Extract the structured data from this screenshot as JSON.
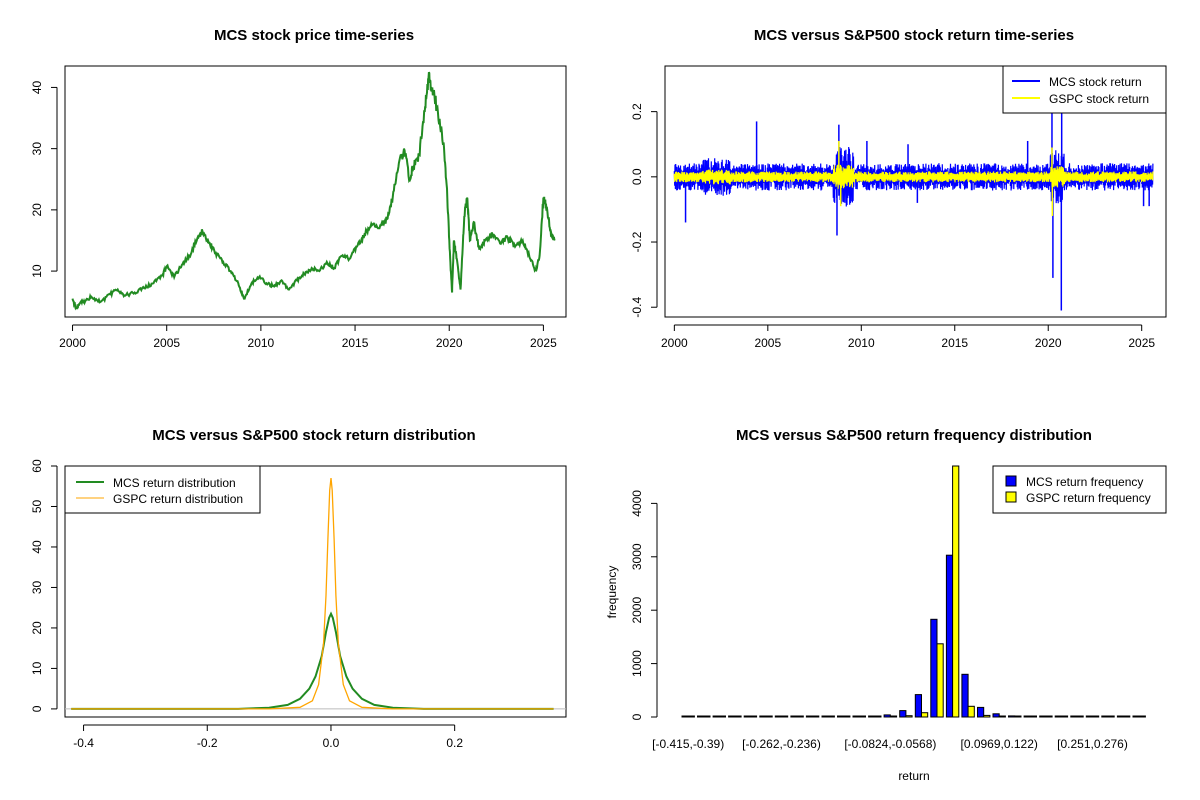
{
  "chart_data": [
    {
      "type": "line",
      "title": "MCS stock price time-series",
      "xlabel": "",
      "ylabel": "",
      "xlim": [
        1999.6,
        2026.2
      ],
      "ylim": [
        2.5,
        43.5
      ],
      "x_ticks": [
        2000,
        2005,
        2010,
        2015,
        2020,
        2025
      ],
      "y_ticks": [
        10,
        20,
        30,
        40
      ],
      "grid": false,
      "colors": {
        "line": "#228B22"
      },
      "series": [
        {
          "name": "MCS price",
          "x": [
            2000.0,
            2000.2,
            2000.4,
            2000.7,
            2001.0,
            2001.5,
            2002.0,
            2002.4,
            2002.8,
            2003.3,
            2003.8,
            2004.3,
            2004.8,
            2005.0,
            2005.4,
            2005.8,
            2006.2,
            2006.6,
            2006.9,
            2007.2,
            2007.6,
            2008.0,
            2008.4,
            2008.8,
            2009.1,
            2009.5,
            2009.9,
            2010.3,
            2010.7,
            2011.1,
            2011.5,
            2011.9,
            2012.3,
            2012.7,
            2013.1,
            2013.5,
            2013.9,
            2014.3,
            2014.7,
            2015.1,
            2015.5,
            2015.9,
            2016.3,
            2016.7,
            2017.0,
            2017.3,
            2017.6,
            2017.9,
            2018.1,
            2018.4,
            2018.7,
            2018.9,
            2019.1,
            2019.4,
            2019.7,
            2019.9,
            2020.05,
            2020.15,
            2020.25,
            2020.4,
            2020.6,
            2020.8,
            2020.95,
            2021.1,
            2021.3,
            2021.6,
            2021.9,
            2022.3,
            2022.7,
            2023.1,
            2023.5,
            2023.9,
            2024.3,
            2024.6,
            2024.8,
            2025.0,
            2025.2,
            2025.4,
            2025.6
          ],
          "y": [
            5.5,
            3.8,
            4.8,
            5.2,
            5.8,
            5.0,
            6.2,
            7.0,
            6.0,
            6.5,
            7.2,
            8.0,
            9.5,
            10.8,
            9.0,
            11.0,
            12.5,
            15.0,
            16.5,
            15.0,
            13.0,
            11.5,
            10.0,
            8.0,
            5.5,
            8.0,
            9.0,
            8.0,
            7.5,
            8.5,
            7.0,
            8.5,
            9.5,
            10.5,
            10.0,
            11.5,
            10.5,
            12.5,
            12.0,
            14.0,
            16.0,
            17.5,
            17.0,
            18.5,
            22.0,
            27.0,
            30.0,
            25.0,
            27.0,
            29.0,
            36.0,
            41.5,
            40.0,
            36.0,
            31.0,
            22.0,
            12.0,
            6.5,
            15.0,
            12.0,
            7.0,
            19.0,
            22.0,
            15.0,
            18.0,
            13.5,
            15.0,
            16.0,
            14.5,
            15.5,
            14.0,
            15.0,
            12.0,
            10.0,
            12.5,
            22.0,
            20.0,
            16.0,
            15.0
          ]
        }
      ]
    },
    {
      "type": "line",
      "title": "MCS versus S&P500 stock return time-series",
      "xlabel": "",
      "ylabel": "",
      "xlim": [
        1999.5,
        2026.3
      ],
      "ylim": [
        -0.43,
        0.34
      ],
      "x_ticks": [
        2000,
        2005,
        2010,
        2015,
        2020,
        2025
      ],
      "y_ticks": [
        -0.4,
        -0.2,
        0.0,
        0.2
      ],
      "y_tick_labels": [
        "-0.4",
        "-0.2",
        "0.0",
        "0.2"
      ],
      "grid": false,
      "legend_position": "top-right",
      "series": [
        {
          "name": "MCS stock return",
          "legend": "MCS stock return",
          "color": "#0000FF",
          "base_amplitude": 0.03,
          "spikes": [
            [
              2000.6,
              -0.14
            ],
            [
              2004.4,
              0.17
            ],
            [
              2008.7,
              -0.18
            ],
            [
              2008.8,
              0.16
            ],
            [
              2010.3,
              0.11
            ],
            [
              2012.5,
              0.1
            ],
            [
              2013.0,
              -0.08
            ],
            [
              2018.9,
              0.11
            ],
            [
              2020.2,
              0.31
            ],
            [
              2020.25,
              -0.31
            ],
            [
              2020.7,
              -0.41
            ],
            [
              2020.72,
              0.24
            ],
            [
              2025.1,
              -0.09
            ],
            [
              2025.4,
              -0.09
            ]
          ]
        },
        {
          "name": "GSPC stock return",
          "legend": "GSPC stock return",
          "color": "#FFFF00",
          "base_amplitude": 0.012,
          "spikes": [
            [
              2008.8,
              0.11
            ],
            [
              2008.9,
              -0.09
            ],
            [
              2020.2,
              0.09
            ],
            [
              2020.22,
              -0.12
            ]
          ]
        }
      ]
    },
    {
      "type": "line",
      "title": "MCS versus S&P500 stock return distribution",
      "xlabel": "",
      "ylabel": "",
      "xlim": [
        -0.43,
        0.38
      ],
      "ylim": [
        -2,
        60
      ],
      "x_ticks": [
        -0.4,
        -0.2,
        0.0,
        0.2
      ],
      "x_tick_labels": [
        "-0.4",
        "-0.2",
        "0.0",
        "0.2"
      ],
      "y_ticks": [
        0,
        10,
        20,
        30,
        40,
        50,
        60
      ],
      "grid": false,
      "legend_position": "top-left",
      "series": [
        {
          "name": "MCS return distribution",
          "legend": "MCS return distribution",
          "color": "#228B22",
          "x": [
            -0.42,
            -0.15,
            -0.1,
            -0.07,
            -0.05,
            -0.035,
            -0.025,
            -0.015,
            -0.008,
            -0.003,
            0.0,
            0.003,
            0.008,
            0.015,
            0.025,
            0.035,
            0.05,
            0.07,
            0.1,
            0.15,
            0.36
          ],
          "y": [
            0,
            0,
            0.3,
            1.0,
            2.5,
            5.0,
            8.0,
            13.0,
            19.0,
            22.5,
            23.5,
            22.5,
            19.0,
            13.0,
            8.0,
            5.0,
            2.5,
            1.0,
            0.3,
            0,
            0
          ]
        },
        {
          "name": "GSPC return distribution",
          "legend": "GSPC return distribution",
          "color": "#FFA500",
          "x": [
            -0.42,
            -0.1,
            -0.05,
            -0.03,
            -0.02,
            -0.012,
            -0.008,
            -0.005,
            -0.002,
            0.0,
            0.002,
            0.005,
            0.008,
            0.012,
            0.02,
            0.03,
            0.05,
            0.1,
            0.36
          ],
          "y": [
            0,
            0,
            0.4,
            2.0,
            6.0,
            16.0,
            28.0,
            42.0,
            54.0,
            57.0,
            54.0,
            42.0,
            28.0,
            16.0,
            6.0,
            2.0,
            0.4,
            0,
            0
          ]
        }
      ]
    },
    {
      "type": "bar",
      "title": "MCS versus S&P500 return frequency distribution",
      "xlabel": "return",
      "ylabel": "frequency",
      "ylim": [
        0,
        4700
      ],
      "y_ticks": [
        0,
        1000,
        2000,
        3000,
        4000
      ],
      "grid": false,
      "legend_position": "top-right",
      "categories": [
        "[-0.415,-0.39)",
        "[-0.39,-0.364)",
        "[-0.364,-0.339)",
        "[-0.339,-0.313)",
        "[-0.313,-0.287)",
        "[-0.287,-0.262)",
        "[-0.262,-0.236)",
        "[-0.236,-0.21)",
        "[-0.21,-0.185)",
        "[-0.185,-0.159)",
        "[-0.159,-0.134)",
        "[-0.134,-0.108)",
        "[-0.108,-0.0824)",
        "[-0.0824,-0.0568)",
        "[-0.0568,-0.0312)",
        "[-0.0312,-0.00563)",
        "[-0.00563,0.02)",
        "[0.02,0.0456)",
        "[0.0456,0.0712)",
        "[0.0712,0.0969)",
        "[0.0969,0.122)",
        "[0.122,0.148)",
        "[0.148,0.174)",
        "[0.174,0.199)",
        "[0.199,0.225)",
        "[0.225,0.251)",
        "[0.251,0.276)",
        "[0.276,0.302)",
        "[0.302,0.327)",
        "[0.327,0.353)"
      ],
      "x_tick_labels_shown": [
        "[-0.415,-0.39)",
        "[-0.262,-0.236)",
        "[-0.0824,-0.0568)",
        "[0.0969,0.122)",
        "[0.251,0.276)"
      ],
      "x_tick_label_indices": [
        0,
        6,
        13,
        20,
        26
      ],
      "series": [
        {
          "name": "MCS return frequency",
          "legend": "MCS return frequency",
          "color": "#0000FF",
          "values": [
            1,
            0,
            0,
            0,
            0,
            0,
            0,
            0,
            0,
            0,
            2,
            5,
            15,
            40,
            120,
            420,
            1830,
            3030,
            800,
            180,
            60,
            20,
            8,
            4,
            2,
            1,
            1,
            0,
            0,
            1
          ]
        },
        {
          "name": "GSPC return frequency",
          "legend": "GSPC return frequency",
          "color": "#FFFF00",
          "values": [
            0,
            0,
            0,
            0,
            0,
            0,
            0,
            0,
            0,
            0,
            0,
            0,
            3,
            10,
            25,
            80,
            1370,
            4700,
            200,
            30,
            8,
            2,
            0,
            0,
            0,
            0,
            0,
            0,
            0,
            0
          ]
        }
      ]
    }
  ]
}
